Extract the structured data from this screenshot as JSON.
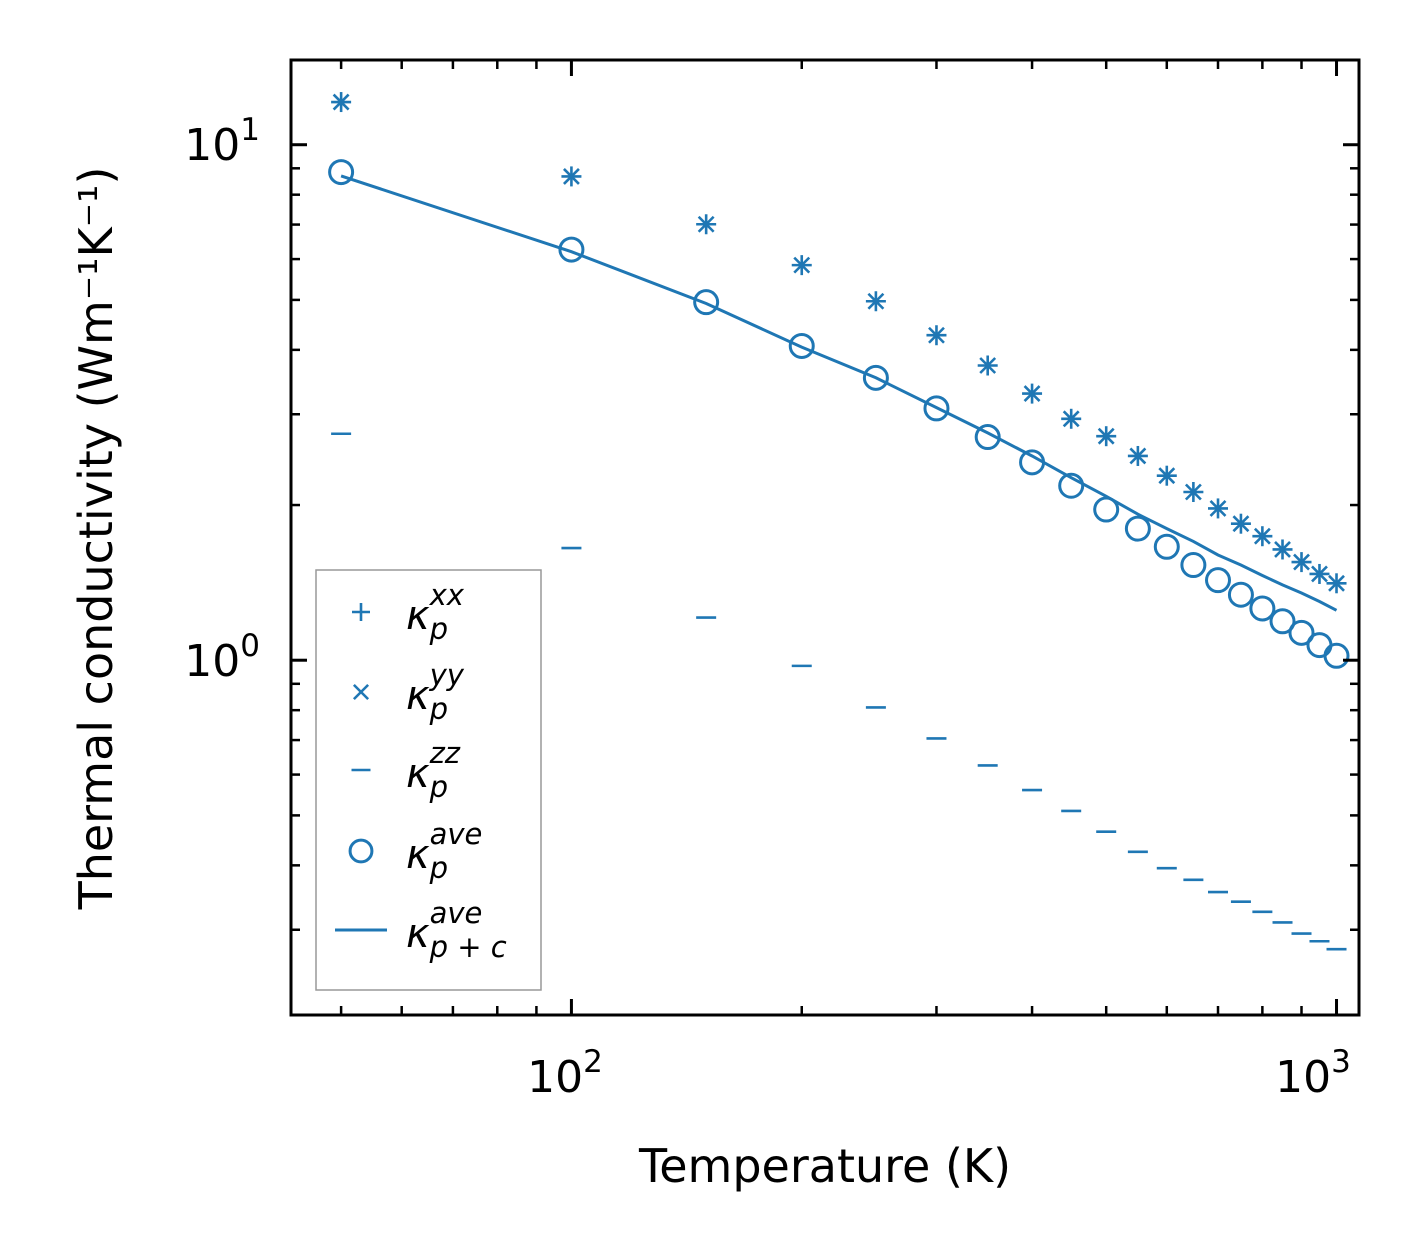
{
  "chart_data": {
    "type": "scatter",
    "xscale": "log",
    "yscale": "log",
    "xlabel": "Temperature (K)",
    "ylabel": "Thermal conductivity (Wm⁻¹K⁻¹)",
    "xlim": [
      43,
      1070
    ],
    "ylim": [
      0.205,
      14.6
    ],
    "x_ticks": [
      {
        "value": 100,
        "base": "10",
        "exp": "2"
      },
      {
        "value": 1000,
        "base": "10",
        "exp": "3"
      }
    ],
    "y_ticks": [
      {
        "value": 1,
        "base": "10",
        "exp": "0"
      },
      {
        "value": 10,
        "base": "10",
        "exp": "1"
      }
    ],
    "x": [
      50,
      100,
      150,
      200,
      250,
      300,
      350,
      400,
      450,
      500,
      550,
      600,
      650,
      700,
      750,
      800,
      850,
      900,
      950,
      1000
    ],
    "series": [
      {
        "name": "xx",
        "marker": "plus",
        "values": [
          12.1,
          8.68,
          7.01,
          5.84,
          4.97,
          4.27,
          3.73,
          3.29,
          2.94,
          2.72,
          2.49,
          2.28,
          2.12,
          1.97,
          1.84,
          1.74,
          1.64,
          1.55,
          1.47,
          1.41
        ]
      },
      {
        "name": "yy",
        "marker": "x",
        "values": [
          12.1,
          8.68,
          7.01,
          5.84,
          4.97,
          4.27,
          3.73,
          3.29,
          2.94,
          2.72,
          2.49,
          2.28,
          2.12,
          1.97,
          1.84,
          1.74,
          1.64,
          1.55,
          1.47,
          1.41
        ]
      },
      {
        "name": "zz",
        "marker": "hline",
        "values": [
          2.75,
          1.65,
          1.21,
          0.975,
          0.81,
          0.705,
          0.625,
          0.56,
          0.51,
          0.465,
          0.425,
          0.395,
          0.375,
          0.355,
          0.34,
          0.325,
          0.31,
          0.295,
          0.285,
          0.275
        ]
      },
      {
        "name": "ave",
        "marker": "circle",
        "values": [
          8.85,
          6.26,
          4.95,
          4.07,
          3.53,
          3.08,
          2.71,
          2.42,
          2.18,
          1.96,
          1.8,
          1.66,
          1.53,
          1.43,
          1.34,
          1.26,
          1.19,
          1.13,
          1.07,
          1.02
        ]
      },
      {
        "name": "ave p+c",
        "marker": "line",
        "values": [
          8.7,
          6.2,
          4.92,
          4.05,
          3.53,
          3.09,
          2.76,
          2.49,
          2.26,
          2.08,
          1.92,
          1.8,
          1.7,
          1.6,
          1.53,
          1.46,
          1.4,
          1.35,
          1.3,
          1.25
        ]
      }
    ],
    "legend": {
      "placement": "lower-left",
      "entries": [
        {
          "marker": "plus",
          "base": "κ",
          "sub": "p",
          "sup": "xx"
        },
        {
          "marker": "x",
          "base": "κ",
          "sub": "p",
          "sup": "yy"
        },
        {
          "marker": "hline",
          "base": "κ",
          "sub": "p",
          "sup": "zz"
        },
        {
          "marker": "circle",
          "base": "κ",
          "sub": "p",
          "sup": "ave"
        },
        {
          "marker": "line",
          "base": "κ",
          "sub": "p + c",
          "sup": "ave"
        }
      ]
    },
    "color": "#1f77b4"
  }
}
